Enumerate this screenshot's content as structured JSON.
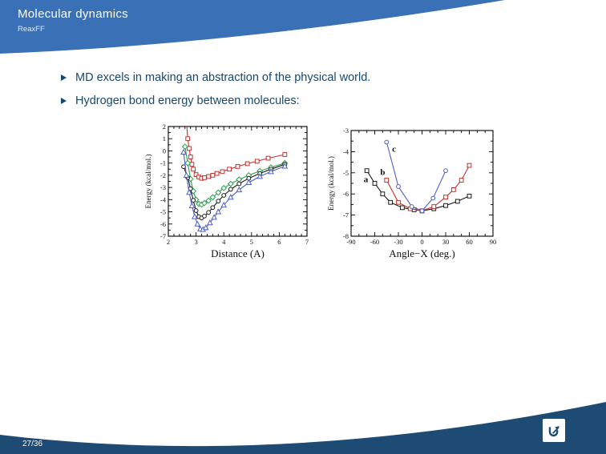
{
  "header": {
    "title": "Molecular dynamics",
    "subtitle": "ReaxFF"
  },
  "bullets": [
    {
      "label": "MD excels in making an abstraction of the physical world."
    },
    {
      "label": "Hydrogen bond energy between molecules:"
    }
  ],
  "footer": {
    "page": "27/36",
    "logo": "university-logo"
  },
  "colors": {
    "header_blue": "#3a70b6",
    "footer_navy": "#1d4b73",
    "text_navy": "#17486f",
    "red": "#c5302c",
    "green": "#2aa14e",
    "black": "#1a1a1a",
    "blue": "#4e5fc2"
  },
  "chart_data": [
    {
      "type": "line",
      "title": "",
      "xlabel": "Distance (A)",
      "ylabel": "Energy (kcal/mol.)",
      "xlim": [
        2,
        7
      ],
      "ylim": [
        -7,
        2
      ],
      "xticks": [
        2,
        3,
        4,
        5,
        6,
        7
      ],
      "yticks": [
        2,
        1,
        0,
        -1,
        -2,
        -3,
        -4,
        -5,
        -6,
        -7
      ],
      "x_minor_step": 0.2,
      "y_minor_step": 0.5,
      "grid": false,
      "legend": null,
      "series": [
        {
          "name": "red-squares",
          "color": "red",
          "marker": "square",
          "x": [
            2.65,
            2.7,
            2.75,
            2.8,
            2.85,
            2.9,
            3.0,
            3.1,
            3.2,
            3.3,
            3.45,
            3.6,
            3.75,
            3.95,
            4.2,
            4.5,
            4.85,
            5.2,
            5.6,
            6.2
          ],
          "y": [
            2.6,
            1.0,
            0.2,
            -0.5,
            -1.1,
            -1.5,
            -1.95,
            -2.15,
            -2.25,
            -2.2,
            -2.1,
            -2.0,
            -1.85,
            -1.7,
            -1.5,
            -1.28,
            -1.05,
            -0.85,
            -0.6,
            -0.3
          ]
        },
        {
          "name": "green-diamonds",
          "color": "green",
          "marker": "diamond",
          "x": [
            2.6,
            2.7,
            2.8,
            2.9,
            3.0,
            3.1,
            3.2,
            3.3,
            3.45,
            3.6,
            3.8,
            4.0,
            4.25,
            4.55,
            4.9,
            5.3,
            5.7,
            6.2
          ],
          "y": [
            0.35,
            -1.0,
            -2.3,
            -3.3,
            -4.0,
            -4.35,
            -4.4,
            -4.28,
            -4.08,
            -3.8,
            -3.42,
            -3.05,
            -2.7,
            -2.35,
            -2.0,
            -1.65,
            -1.35,
            -1.0
          ]
        },
        {
          "name": "black-circles",
          "color": "black",
          "marker": "circle",
          "x": [
            2.55,
            2.7,
            2.8,
            2.9,
            3.0,
            3.1,
            3.2,
            3.3,
            3.45,
            3.6,
            3.8,
            4.0,
            4.25,
            4.55,
            4.9,
            5.3,
            5.7,
            6.2
          ],
          "y": [
            -1.3,
            -2.2,
            -3.1,
            -4.05,
            -4.9,
            -5.4,
            -5.5,
            -5.35,
            -5.05,
            -4.65,
            -4.12,
            -3.65,
            -3.15,
            -2.7,
            -2.25,
            -1.85,
            -1.5,
            -1.1
          ]
        },
        {
          "name": "blue-triangles",
          "color": "blue",
          "marker": "triangle",
          "x": [
            2.55,
            2.65,
            2.75,
            2.85,
            2.95,
            3.05,
            3.15,
            3.25,
            3.35,
            3.5,
            3.65,
            3.8,
            4.0,
            4.25,
            4.55,
            4.9,
            5.3,
            5.7,
            6.2
          ],
          "y": [
            -0.1,
            -2.0,
            -3.4,
            -4.5,
            -5.4,
            -6.0,
            -6.4,
            -6.45,
            -6.3,
            -5.9,
            -5.45,
            -5.0,
            -4.45,
            -3.8,
            -3.2,
            -2.6,
            -2.1,
            -1.7,
            -1.25
          ]
        }
      ],
      "annotations": []
    },
    {
      "type": "line",
      "title": "",
      "xlabel": "Angle−X (deg.)",
      "ylabel": "Energy (kcal/mol.)",
      "xlim": [
        -90,
        90
      ],
      "ylim": [
        -8,
        -3
      ],
      "xticks": [
        -90,
        -60,
        -30,
        0,
        30,
        60,
        90
      ],
      "yticks": [
        -3,
        -4,
        -5,
        -6,
        -7,
        -8
      ],
      "x_minor_step": 10,
      "y_minor_step": 0.5,
      "grid": false,
      "legend": null,
      "series": [
        {
          "name": "a-black-squares",
          "color": "black",
          "marker": "square",
          "x": [
            -70,
            -60,
            -50,
            -40,
            -25,
            -10,
            0,
            15,
            30,
            45,
            60
          ],
          "y": [
            -4.9,
            -5.5,
            -6.0,
            -6.4,
            -6.65,
            -6.75,
            -6.8,
            -6.7,
            -6.55,
            -6.35,
            -6.1
          ]
        },
        {
          "name": "b-red-squares",
          "color": "red",
          "marker": "square",
          "x": [
            -45,
            -30,
            -15,
            0,
            15,
            30,
            40,
            50,
            60
          ],
          "y": [
            -5.35,
            -6.4,
            -6.7,
            -6.8,
            -6.6,
            -6.15,
            -5.8,
            -5.35,
            -4.65
          ]
        },
        {
          "name": "c-blue-circles",
          "color": "blue",
          "marker": "circle",
          "x": [
            -45,
            -30,
            -13,
            0,
            14,
            30
          ],
          "y": [
            -3.55,
            -5.65,
            -6.6,
            -6.8,
            -6.2,
            -4.9
          ]
        }
      ],
      "annotations": [
        {
          "text": "a",
          "x": -74,
          "y": -5.45
        },
        {
          "text": "b",
          "x": -53,
          "y": -5.1
        },
        {
          "text": "c",
          "x": -38,
          "y": -4.0
        }
      ]
    }
  ]
}
